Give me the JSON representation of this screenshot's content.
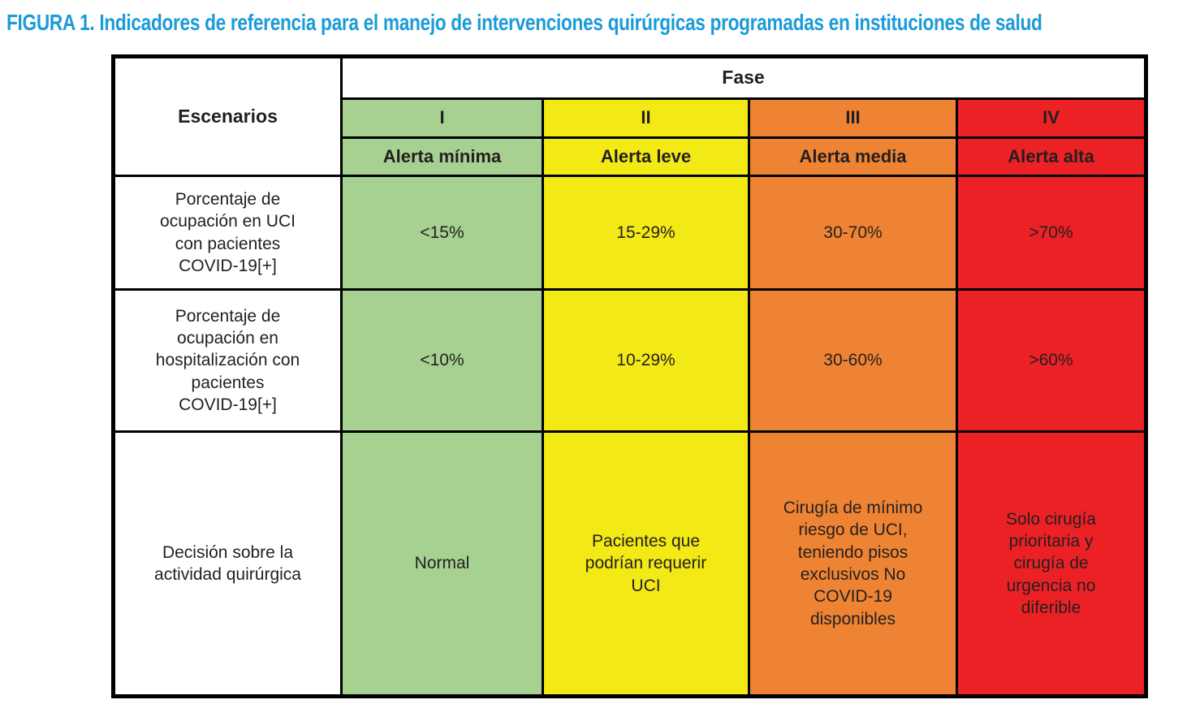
{
  "title": "FIGURA 1. Indicadores de referencia para el manejo de intervenciones quirúrgicas programadas en instituciones de salud",
  "colors": {
    "title_blue": "#1b9bd8",
    "phase_green": "#a6d191",
    "phase_yellow": "#f2e915",
    "phase_orange": "#ee8433",
    "phase_red": "#ec2125",
    "border_black": "#000000",
    "cell_text": "#231f20"
  },
  "table": {
    "corner_header": "Escenarios",
    "fase_header": "Fase",
    "phases": [
      {
        "numeral": "I",
        "alert": "Alerta mínima"
      },
      {
        "numeral": "II",
        "alert": "Alerta leve"
      },
      {
        "numeral": "III",
        "alert": "Alerta media"
      },
      {
        "numeral": "IV",
        "alert": "Alerta alta"
      }
    ],
    "rows": [
      {
        "label": "Porcentaje de\nocupación en UCI\ncon pacientes\nCOVID-19[+]",
        "values": [
          "<15%",
          "15-29%",
          "30-70%",
          ">70%"
        ]
      },
      {
        "label": "Porcentaje de\nocupación en\nhospitalización con\npacientes\nCOVID-19[+]",
        "values": [
          "<10%",
          "10-29%",
          "30-60%",
          ">60%"
        ]
      },
      {
        "label": "Decisión sobre la\nactividad quirúrgica",
        "values": [
          "Normal",
          "Pacientes que\npodrían requerir\nUCI",
          "Cirugía de mínimo\nriesgo de UCI,\nteniendo pisos\nexclusivos No\nCOVID-19\ndisponibles",
          "Solo cirugía\nprioritaria y\ncirugía de\nurgencia no\ndiferible"
        ]
      }
    ]
  }
}
